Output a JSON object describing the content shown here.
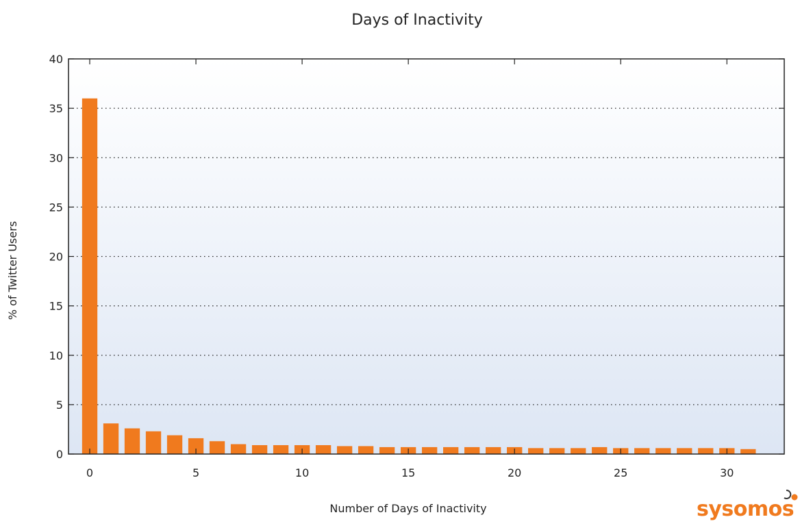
{
  "chart_data": {
    "type": "bar",
    "title": "Days of Inactivity",
    "xlabel": "Number of Days of Inactivity",
    "ylabel": "% of Twitter Users",
    "x": [
      0,
      1,
      2,
      3,
      4,
      5,
      6,
      7,
      8,
      9,
      10,
      11,
      12,
      13,
      14,
      15,
      16,
      17,
      18,
      19,
      20,
      21,
      22,
      23,
      24,
      25,
      26,
      27,
      28,
      29,
      30,
      31
    ],
    "values": [
      36.0,
      3.1,
      2.6,
      2.3,
      1.9,
      1.6,
      1.3,
      1.0,
      0.9,
      0.9,
      0.9,
      0.9,
      0.8,
      0.8,
      0.7,
      0.7,
      0.7,
      0.7,
      0.7,
      0.7,
      0.7,
      0.6,
      0.6,
      0.6,
      0.7,
      0.6,
      0.6,
      0.6,
      0.6,
      0.6,
      0.6,
      0.5
    ],
    "xlim": [
      -1,
      32.7
    ],
    "ylim": [
      0,
      40
    ],
    "xticks": [
      0,
      5,
      10,
      15,
      20,
      25,
      30
    ],
    "yticks": [
      0,
      5,
      10,
      15,
      20,
      25,
      30,
      35,
      40
    ],
    "grid": "horizontal dotted",
    "bar_color": "#f07a1e",
    "legend": "none"
  },
  "logo": {
    "text": "sysomos",
    "color": "#f07a1e"
  }
}
